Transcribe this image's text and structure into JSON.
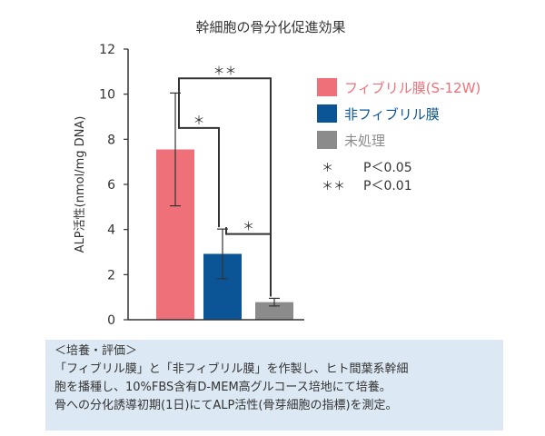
{
  "chart_data": {
    "type": "bar",
    "title": "幹細胞の骨分化促進効果",
    "ylabel": "ALP活性(nmol/mg DNA)",
    "ylim": [
      0,
      12
    ],
    "yticks": [
      "0",
      "2",
      "4",
      "6",
      "8",
      "10",
      "12"
    ],
    "categories": [
      "フィブリル膜(S-12W)",
      "非フィブリル膜",
      "未処理"
    ],
    "values": [
      7.55,
      2.92,
      0.78
    ],
    "errors": [
      2.5,
      1.1,
      0.17
    ],
    "colors": [
      "#f07079",
      "#0b5596",
      "#8b8b8b"
    ],
    "legend": {
      "placement": "right",
      "entries": [
        {
          "label": "フィブリル膜(S-12W)",
          "color": "#f07079"
        },
        {
          "label": "非フィブリル膜",
          "color": "#0b5596"
        },
        {
          "label": "未処理",
          "color": "#8b8b8b"
        }
      ],
      "significance": [
        {
          "mark": "＊",
          "text": "P＜0.05"
        },
        {
          "mark": "＊＊",
          "text": "P＜0.01"
        }
      ]
    },
    "brackets": [
      {
        "from": 0,
        "to": 1,
        "level": 8.5,
        "label": "＊"
      },
      {
        "from": 1,
        "to": 2,
        "level": 3.8,
        "label": "＊"
      },
      {
        "from": 0,
        "to": 2,
        "level": 10.7,
        "label": "＊＊"
      }
    ]
  },
  "note": {
    "title": "＜培養・評価＞",
    "lines": [
      "「フィブリル膜」と「非フィブリル膜」を作製し、ヒト間葉系幹細",
      "胞を播種し、10%FBS含有D-MEM高グルコース培地にて培養。",
      "骨への分化誘導初期(1日)にてALP活性(骨芽細胞の指標)を測定。"
    ]
  }
}
